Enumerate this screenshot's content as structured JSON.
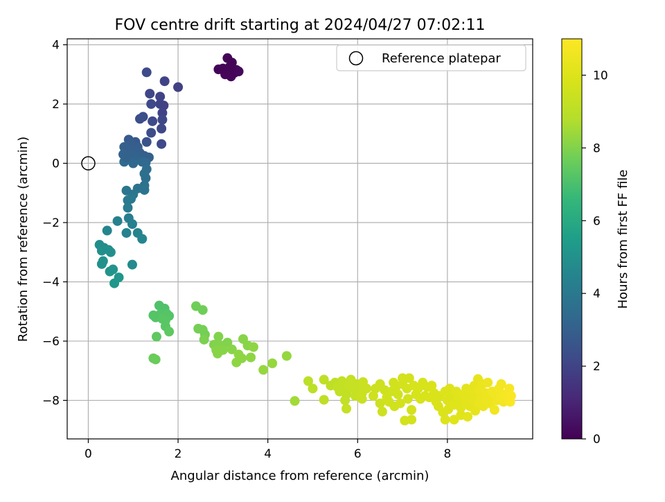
{
  "chart_data": {
    "type": "scatter",
    "title": "FOV centre drift starting at 2024/04/27 07:02:11",
    "xlabel": "Angular distance from reference (arcmin)",
    "ylabel": "Rotation from reference (arcmin)",
    "xlim": [
      -0.47,
      9.9
    ],
    "ylim": [
      -9.3,
      4.2
    ],
    "xticks": [
      "0",
      "2",
      "4",
      "6",
      "8"
    ],
    "xtick_values": [
      0,
      2,
      4,
      6,
      8
    ],
    "yticks": [
      "−8",
      "−6",
      "−4",
      "−2",
      "0",
      "2",
      "4"
    ],
    "ytick_values": [
      -8,
      -6,
      -4,
      -2,
      0,
      2,
      4
    ],
    "grid": true,
    "legend": {
      "position": "upper right",
      "entries": [
        "Reference platepar"
      ]
    },
    "reference_point": {
      "x": 0,
      "y": 0,
      "label": "Reference platepar",
      "marker": "hollow circle"
    },
    "colorbar": {
      "label": "Hours from first FF file",
      "colormap": "viridis",
      "range": [
        0,
        11
      ],
      "ticks": [
        "0",
        "2",
        "4",
        "6",
        "8",
        "10"
      ],
      "tick_values": [
        0,
        2,
        4,
        6,
        8,
        10
      ]
    },
    "points": [
      {
        "x": 2.9,
        "y": 3.17,
        "h": 0.1
      },
      {
        "x": 3.1,
        "y": 3.55,
        "h": 0.1
      },
      {
        "x": 3.2,
        "y": 3.4,
        "h": 0.1
      },
      {
        "x": 3.05,
        "y": 3.0,
        "h": 0.15
      },
      {
        "x": 3.18,
        "y": 2.93,
        "h": 0.15
      },
      {
        "x": 3.3,
        "y": 3.15,
        "h": 0.2
      },
      {
        "x": 3.25,
        "y": 3.05,
        "h": 0.15
      },
      {
        "x": 3.0,
        "y": 3.2,
        "h": 0.1
      },
      {
        "x": 3.15,
        "y": 3.25,
        "h": 0.1
      },
      {
        "x": 3.35,
        "y": 3.1,
        "h": 0.2
      },
      {
        "x": 1.3,
        "y": 3.07,
        "h": 2.2
      },
      {
        "x": 1.7,
        "y": 2.77,
        "h": 2.0
      },
      {
        "x": 2.0,
        "y": 2.57,
        "h": 1.9
      },
      {
        "x": 1.37,
        "y": 2.35,
        "h": 2.1
      },
      {
        "x": 1.6,
        "y": 2.25,
        "h": 2.0
      },
      {
        "x": 1.4,
        "y": 2.0,
        "h": 2.2
      },
      {
        "x": 1.6,
        "y": 2.0,
        "h": 2.0
      },
      {
        "x": 1.68,
        "y": 1.95,
        "h": 1.9
      },
      {
        "x": 1.22,
        "y": 1.57,
        "h": 2.3
      },
      {
        "x": 1.65,
        "y": 1.7,
        "h": 2.0
      },
      {
        "x": 1.65,
        "y": 1.47,
        "h": 2.1
      },
      {
        "x": 1.15,
        "y": 1.5,
        "h": 2.4
      },
      {
        "x": 1.43,
        "y": 1.42,
        "h": 2.2
      },
      {
        "x": 1.4,
        "y": 1.03,
        "h": 2.3
      },
      {
        "x": 1.63,
        "y": 1.17,
        "h": 2.1
      },
      {
        "x": 1.3,
        "y": 0.72,
        "h": 2.5
      },
      {
        "x": 1.63,
        "y": 0.65,
        "h": 2.2
      },
      {
        "x": 0.9,
        "y": 0.8,
        "h": 2.8
      },
      {
        "x": 1.05,
        "y": 0.72,
        "h": 2.8
      },
      {
        "x": 0.95,
        "y": 0.65,
        "h": 2.9
      },
      {
        "x": 0.8,
        "y": 0.55,
        "h": 3.0
      },
      {
        "x": 1.1,
        "y": 0.55,
        "h": 2.9
      },
      {
        "x": 1.0,
        "y": 0.45,
        "h": 3.0
      },
      {
        "x": 0.85,
        "y": 0.4,
        "h": 3.0
      },
      {
        "x": 1.15,
        "y": 0.35,
        "h": 3.0
      },
      {
        "x": 0.78,
        "y": 0.3,
        "h": 3.1
      },
      {
        "x": 0.95,
        "y": 0.28,
        "h": 3.1
      },
      {
        "x": 1.1,
        "y": 0.22,
        "h": 3.1
      },
      {
        "x": 1.25,
        "y": 0.25,
        "h": 3.0
      },
      {
        "x": 1.35,
        "y": 0.2,
        "h": 3.0
      },
      {
        "x": 0.88,
        "y": 0.15,
        "h": 3.2
      },
      {
        "x": 1.05,
        "y": 0.1,
        "h": 3.2
      },
      {
        "x": 1.2,
        "y": 0.05,
        "h": 3.3
      },
      {
        "x": 0.8,
        "y": 0.05,
        "h": 3.4
      },
      {
        "x": 1.0,
        "y": 0.0,
        "h": 3.3
      },
      {
        "x": 1.28,
        "y": 0.02,
        "h": 3.4
      },
      {
        "x": 0.85,
        "y": 0.2,
        "h": 3.1
      },
      {
        "x": 1.3,
        "y": -0.2,
        "h": 3.5
      },
      {
        "x": 1.25,
        "y": -0.35,
        "h": 3.6
      },
      {
        "x": 1.28,
        "y": -0.5,
        "h": 3.6
      },
      {
        "x": 1.25,
        "y": -0.75,
        "h": 3.7
      },
      {
        "x": 1.1,
        "y": -0.85,
        "h": 3.8
      },
      {
        "x": 1.25,
        "y": -0.9,
        "h": 3.8
      },
      {
        "x": 0.85,
        "y": -0.92,
        "h": 3.9
      },
      {
        "x": 1.0,
        "y": -1.05,
        "h": 3.9
      },
      {
        "x": 0.95,
        "y": -1.2,
        "h": 4.0
      },
      {
        "x": 0.88,
        "y": -1.25,
        "h": 4.0
      },
      {
        "x": 0.88,
        "y": -1.5,
        "h": 4.1
      },
      {
        "x": 0.9,
        "y": -1.85,
        "h": 4.2
      },
      {
        "x": 0.98,
        "y": -2.05,
        "h": 4.3
      },
      {
        "x": 0.85,
        "y": -2.35,
        "h": 4.4
      },
      {
        "x": 1.1,
        "y": -2.35,
        "h": 4.4
      },
      {
        "x": 1.2,
        "y": -2.55,
        "h": 4.5
      },
      {
        "x": 0.65,
        "y": -1.95,
        "h": 4.3
      },
      {
        "x": 0.42,
        "y": -2.27,
        "h": 4.5
      },
      {
        "x": 0.25,
        "y": -2.75,
        "h": 4.8
      },
      {
        "x": 0.35,
        "y": -2.85,
        "h": 4.8
      },
      {
        "x": 0.3,
        "y": -2.95,
        "h": 4.9
      },
      {
        "x": 0.45,
        "y": -2.92,
        "h": 4.9
      },
      {
        "x": 0.5,
        "y": -3.0,
        "h": 4.9
      },
      {
        "x": 0.33,
        "y": -3.3,
        "h": 5.0
      },
      {
        "x": 0.3,
        "y": -3.4,
        "h": 5.0
      },
      {
        "x": 0.98,
        "y": -3.42,
        "h": 4.7
      },
      {
        "x": 0.55,
        "y": -3.58,
        "h": 5.1
      },
      {
        "x": 0.48,
        "y": -3.65,
        "h": 5.1
      },
      {
        "x": 0.68,
        "y": -3.85,
        "h": 5.2
      },
      {
        "x": 0.58,
        "y": -4.05,
        "h": 5.2
      },
      {
        "x": 1.58,
        "y": -4.8,
        "h": 7.1
      },
      {
        "x": 1.7,
        "y": -4.9,
        "h": 7.1
      },
      {
        "x": 1.45,
        "y": -5.13,
        "h": 7.2
      },
      {
        "x": 1.6,
        "y": -5.1,
        "h": 7.2
      },
      {
        "x": 1.75,
        "y": -5.08,
        "h": 7.2
      },
      {
        "x": 1.8,
        "y": -5.15,
        "h": 7.2
      },
      {
        "x": 1.5,
        "y": -5.2,
        "h": 7.2
      },
      {
        "x": 1.65,
        "y": -5.25,
        "h": 7.3
      },
      {
        "x": 1.72,
        "y": -5.3,
        "h": 7.3
      },
      {
        "x": 1.72,
        "y": -5.5,
        "h": 7.3
      },
      {
        "x": 1.8,
        "y": -5.68,
        "h": 7.4
      },
      {
        "x": 1.52,
        "y": -5.85,
        "h": 7.4
      },
      {
        "x": 1.45,
        "y": -6.58,
        "h": 7.6
      },
      {
        "x": 1.5,
        "y": -6.62,
        "h": 7.6
      },
      {
        "x": 2.4,
        "y": -4.82,
        "h": 7.7
      },
      {
        "x": 2.55,
        "y": -4.95,
        "h": 7.7
      },
      {
        "x": 2.45,
        "y": -5.58,
        "h": 7.8
      },
      {
        "x": 2.55,
        "y": -5.62,
        "h": 7.8
      },
      {
        "x": 2.6,
        "y": -5.78,
        "h": 7.8
      },
      {
        "x": 2.58,
        "y": -5.95,
        "h": 7.9
      },
      {
        "x": 2.9,
        "y": -5.85,
        "h": 8.0
      },
      {
        "x": 2.8,
        "y": -6.12,
        "h": 8.0
      },
      {
        "x": 2.95,
        "y": -6.15,
        "h": 8.0
      },
      {
        "x": 3.1,
        "y": -6.05,
        "h": 8.0
      },
      {
        "x": 2.85,
        "y": -6.3,
        "h": 8.1
      },
      {
        "x": 3.0,
        "y": -6.3,
        "h": 8.1
      },
      {
        "x": 2.88,
        "y": -6.42,
        "h": 8.1
      },
      {
        "x": 3.2,
        "y": -6.28,
        "h": 8.1
      },
      {
        "x": 3.35,
        "y": -6.45,
        "h": 8.2
      },
      {
        "x": 3.3,
        "y": -6.72,
        "h": 8.2
      },
      {
        "x": 3.45,
        "y": -5.93,
        "h": 8.1
      },
      {
        "x": 3.55,
        "y": -6.15,
        "h": 8.1
      },
      {
        "x": 3.68,
        "y": -6.2,
        "h": 8.2
      },
      {
        "x": 3.62,
        "y": -6.55,
        "h": 8.2
      },
      {
        "x": 3.42,
        "y": -6.58,
        "h": 8.2
      },
      {
        "x": 3.9,
        "y": -6.97,
        "h": 8.3
      },
      {
        "x": 4.1,
        "y": -6.75,
        "h": 8.3
      },
      {
        "x": 4.42,
        "y": -6.5,
        "h": 8.3
      },
      {
        "x": 4.6,
        "y": -8.02,
        "h": 8.5
      },
      {
        "x": 4.9,
        "y": -7.35,
        "h": 9.0
      },
      {
        "x": 5.0,
        "y": -7.6,
        "h": 9.0
      },
      {
        "x": 5.25,
        "y": -7.3,
        "h": 9.1
      },
      {
        "x": 5.25,
        "y": -7.98,
        "h": 9.1
      },
      {
        "x": 5.4,
        "y": -7.5,
        "h": 9.1
      },
      {
        "x": 5.5,
        "y": -7.4,
        "h": 9.1
      },
      {
        "x": 5.55,
        "y": -7.55,
        "h": 9.2
      },
      {
        "x": 5.6,
        "y": -7.7,
        "h": 9.2
      },
      {
        "x": 5.65,
        "y": -7.35,
        "h": 9.2
      },
      {
        "x": 5.7,
        "y": -7.45,
        "h": 9.2
      },
      {
        "x": 5.72,
        "y": -7.65,
        "h": 9.2
      },
      {
        "x": 5.75,
        "y": -7.8,
        "h": 9.2
      },
      {
        "x": 5.72,
        "y": -8.0,
        "h": 9.2
      },
      {
        "x": 5.75,
        "y": -8.28,
        "h": 9.3
      },
      {
        "x": 5.8,
        "y": -7.5,
        "h": 9.3
      },
      {
        "x": 5.85,
        "y": -7.3,
        "h": 9.3
      },
      {
        "x": 5.9,
        "y": -7.6,
        "h": 9.3
      },
      {
        "x": 5.95,
        "y": -7.85,
        "h": 9.3
      },
      {
        "x": 5.98,
        "y": -7.45,
        "h": 9.3
      },
      {
        "x": 6.05,
        "y": -7.55,
        "h": 9.3
      },
      {
        "x": 6.1,
        "y": -7.75,
        "h": 9.4
      },
      {
        "x": 6.1,
        "y": -7.95,
        "h": 9.4
      },
      {
        "x": 6.12,
        "y": -7.38,
        "h": 9.4
      },
      {
        "x": 6.2,
        "y": -7.6,
        "h": 9.4
      },
      {
        "x": 6.35,
        "y": -7.85,
        "h": 9.5
      },
      {
        "x": 6.4,
        "y": -7.6,
        "h": 9.5
      },
      {
        "x": 6.5,
        "y": -7.45,
        "h": 9.5
      },
      {
        "x": 6.5,
        "y": -8.1,
        "h": 9.5
      },
      {
        "x": 6.55,
        "y": -8.38,
        "h": 9.5
      },
      {
        "x": 6.6,
        "y": -7.65,
        "h": 9.5
      },
      {
        "x": 6.65,
        "y": -7.9,
        "h": 9.6
      },
      {
        "x": 6.7,
        "y": -8.05,
        "h": 9.6
      },
      {
        "x": 6.75,
        "y": -7.7,
        "h": 9.6
      },
      {
        "x": 6.8,
        "y": -7.4,
        "h": 9.6
      },
      {
        "x": 6.82,
        "y": -8.2,
        "h": 9.6
      },
      {
        "x": 6.85,
        "y": -7.55,
        "h": 9.6
      },
      {
        "x": 6.9,
        "y": -7.8,
        "h": 9.6
      },
      {
        "x": 6.95,
        "y": -8.1,
        "h": 9.7
      },
      {
        "x": 7.0,
        "y": -7.45,
        "h": 9.7
      },
      {
        "x": 7.0,
        "y": -7.25,
        "h": 9.7
      },
      {
        "x": 7.05,
        "y": -8.68,
        "h": 9.7
      },
      {
        "x": 7.1,
        "y": -7.6,
        "h": 9.7
      },
      {
        "x": 7.12,
        "y": -7.95,
        "h": 9.7
      },
      {
        "x": 7.15,
        "y": -7.25,
        "h": 9.7
      },
      {
        "x": 7.2,
        "y": -8.32,
        "h": 9.7
      },
      {
        "x": 7.2,
        "y": -8.65,
        "h": 9.7
      },
      {
        "x": 7.25,
        "y": -7.5,
        "h": 9.8
      },
      {
        "x": 7.3,
        "y": -7.8,
        "h": 9.8
      },
      {
        "x": 7.35,
        "y": -7.6,
        "h": 9.8
      },
      {
        "x": 7.4,
        "y": -7.95,
        "h": 9.8
      },
      {
        "x": 7.45,
        "y": -7.4,
        "h": 9.8
      },
      {
        "x": 7.5,
        "y": -7.85,
        "h": 9.8
      },
      {
        "x": 7.55,
        "y": -7.55,
        "h": 9.8
      },
      {
        "x": 7.6,
        "y": -7.9,
        "h": 9.9
      },
      {
        "x": 7.65,
        "y": -7.5,
        "h": 9.9
      },
      {
        "x": 7.7,
        "y": -7.75,
        "h": 9.9
      },
      {
        "x": 7.75,
        "y": -8.05,
        "h": 9.9
      },
      {
        "x": 7.8,
        "y": -8.2,
        "h": 9.9
      },
      {
        "x": 7.82,
        "y": -7.85,
        "h": 9.9
      },
      {
        "x": 7.9,
        "y": -8.4,
        "h": 10.0
      },
      {
        "x": 7.95,
        "y": -7.7,
        "h": 10.0
      },
      {
        "x": 7.95,
        "y": -8.65,
        "h": 10.0
      },
      {
        "x": 8.0,
        "y": -8.0,
        "h": 10.0
      },
      {
        "x": 8.02,
        "y": -8.3,
        "h": 10.0
      },
      {
        "x": 8.05,
        "y": -7.6,
        "h": 10.0
      },
      {
        "x": 8.1,
        "y": -7.9,
        "h": 10.0
      },
      {
        "x": 8.15,
        "y": -8.15,
        "h": 10.1
      },
      {
        "x": 8.15,
        "y": -8.65,
        "h": 10.1
      },
      {
        "x": 8.2,
        "y": -7.7,
        "h": 10.1
      },
      {
        "x": 8.22,
        "y": -8.05,
        "h": 10.1
      },
      {
        "x": 8.25,
        "y": -7.95,
        "h": 10.1
      },
      {
        "x": 8.3,
        "y": -8.25,
        "h": 10.1
      },
      {
        "x": 8.3,
        "y": -8.5,
        "h": 10.1
      },
      {
        "x": 8.35,
        "y": -7.8,
        "h": 10.2
      },
      {
        "x": 8.4,
        "y": -8.1,
        "h": 10.2
      },
      {
        "x": 8.42,
        "y": -7.6,
        "h": 10.2
      },
      {
        "x": 8.45,
        "y": -8.55,
        "h": 10.2
      },
      {
        "x": 8.5,
        "y": -7.9,
        "h": 10.2
      },
      {
        "x": 8.5,
        "y": -8.2,
        "h": 10.2
      },
      {
        "x": 8.55,
        "y": -7.7,
        "h": 10.3
      },
      {
        "x": 8.6,
        "y": -8.0,
        "h": 10.3
      },
      {
        "x": 8.6,
        "y": -7.5,
        "h": 10.3
      },
      {
        "x": 8.62,
        "y": -8.35,
        "h": 10.3
      },
      {
        "x": 8.65,
        "y": -7.85,
        "h": 10.3
      },
      {
        "x": 8.68,
        "y": -7.28,
        "h": 10.3
      },
      {
        "x": 8.7,
        "y": -8.1,
        "h": 10.4
      },
      {
        "x": 8.72,
        "y": -7.65,
        "h": 10.4
      },
      {
        "x": 8.75,
        "y": -7.95,
        "h": 10.4
      },
      {
        "x": 8.78,
        "y": -7.45,
        "h": 10.4
      },
      {
        "x": 8.8,
        "y": -8.2,
        "h": 10.4
      },
      {
        "x": 8.85,
        "y": -7.75,
        "h": 10.5
      },
      {
        "x": 8.88,
        "y": -8.0,
        "h": 10.5
      },
      {
        "x": 8.9,
        "y": -7.4,
        "h": 10.5
      },
      {
        "x": 8.92,
        "y": -7.9,
        "h": 10.5
      },
      {
        "x": 8.95,
        "y": -8.1,
        "h": 10.5
      },
      {
        "x": 9.0,
        "y": -7.7,
        "h": 10.6
      },
      {
        "x": 9.05,
        "y": -8.32,
        "h": 10.6
      },
      {
        "x": 9.08,
        "y": -7.85,
        "h": 10.6
      },
      {
        "x": 9.1,
        "y": -8.0,
        "h": 10.6
      },
      {
        "x": 9.15,
        "y": -7.6,
        "h": 10.7
      },
      {
        "x": 9.18,
        "y": -7.9,
        "h": 10.7
      },
      {
        "x": 9.2,
        "y": -7.45,
        "h": 10.7
      },
      {
        "x": 9.25,
        "y": -8.05,
        "h": 10.7
      },
      {
        "x": 9.3,
        "y": -7.8,
        "h": 10.8
      },
      {
        "x": 9.35,
        "y": -7.95,
        "h": 10.8
      },
      {
        "x": 9.38,
        "y": -7.6,
        "h": 10.8
      },
      {
        "x": 9.4,
        "y": -8.05,
        "h": 10.9
      },
      {
        "x": 9.42,
        "y": -7.85,
        "h": 10.9
      }
    ]
  }
}
